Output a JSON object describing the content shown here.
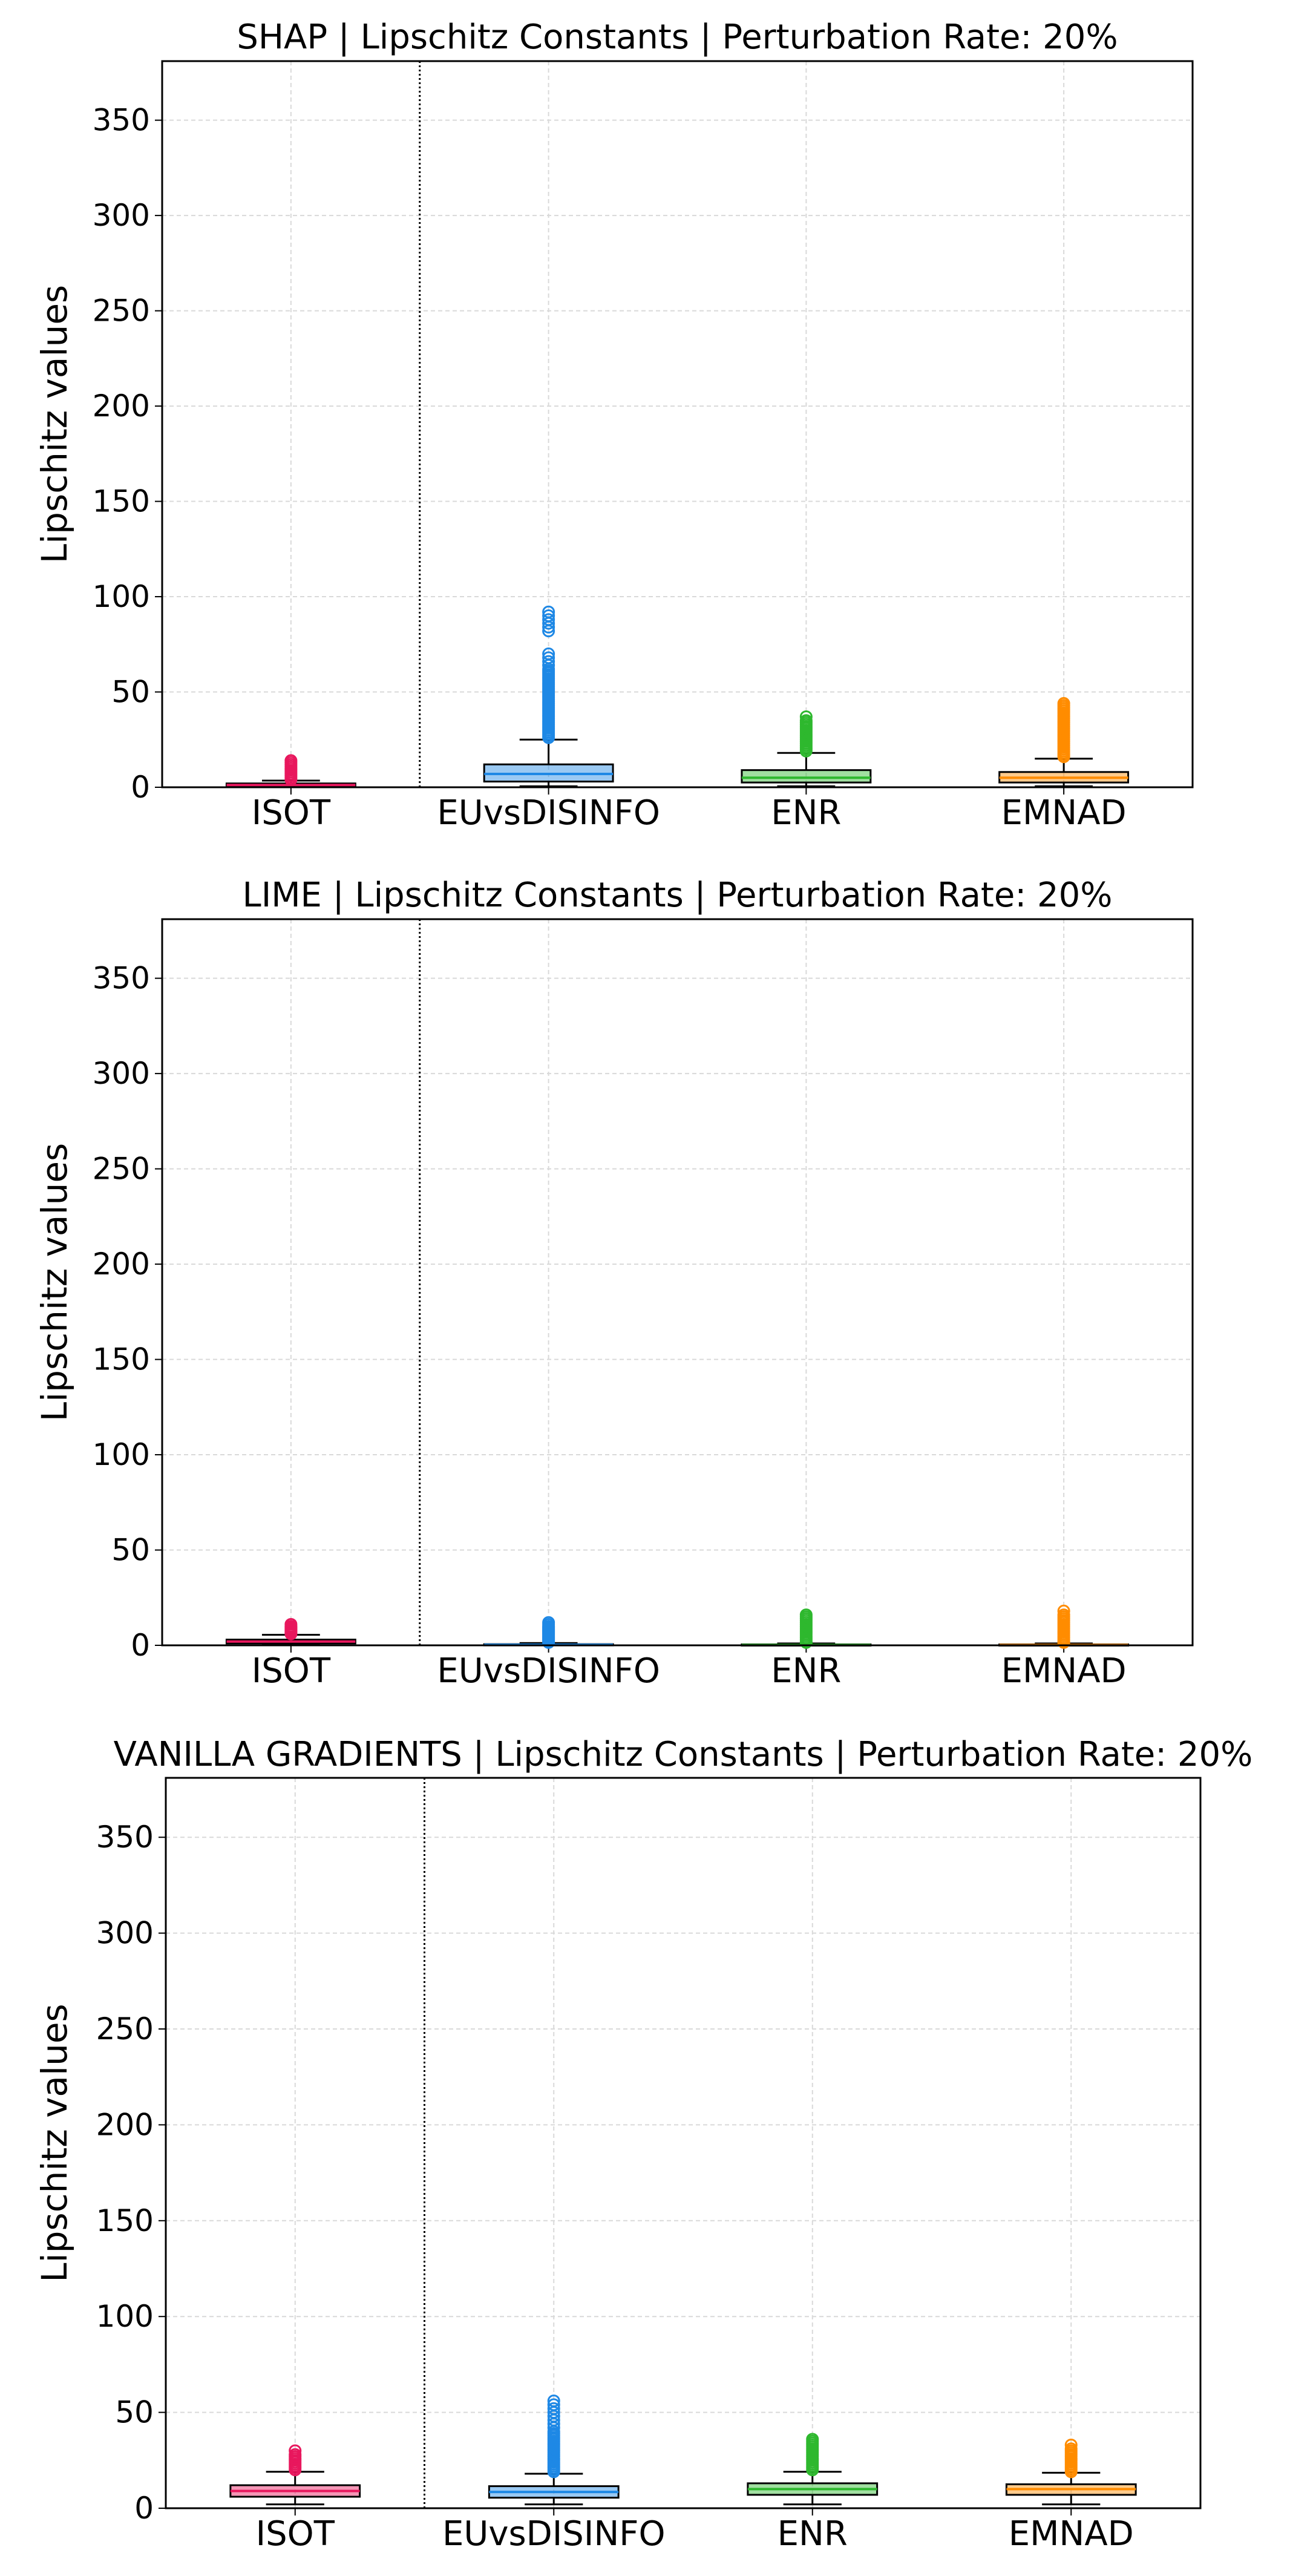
{
  "chart_data": [
    {
      "type": "box",
      "title": "SHAP | Lipschitz Constants | Perturbation Rate: 20%",
      "xlabel": "",
      "ylabel": "Lipschitz values",
      "ylim": [
        0,
        381
      ],
      "yticks": [
        0,
        50,
        100,
        150,
        200,
        250,
        300,
        350
      ],
      "grid": true,
      "separator_after_category": "ISOT",
      "categories": [
        "ISOT",
        "EUvsDISINFO",
        "ENR",
        "EMNAD"
      ],
      "series": [
        {
          "name": "ISOT",
          "color": "#e8175d",
          "whislo": 0.1,
          "q1": 0.6,
          "med": 1.2,
          "q3": 2.0,
          "whishi": 3.5,
          "fliers": [
            4,
            5,
            6,
            7,
            8,
            9,
            10,
            11,
            12,
            13,
            14
          ]
        },
        {
          "name": "EUvsDISINFO",
          "color": "#1e88e5",
          "whislo": 0.5,
          "q1": 3.0,
          "med": 7.0,
          "q3": 12.0,
          "whishi": 25.0,
          "fliers": [
            26,
            27,
            28,
            29,
            30,
            31,
            32,
            33,
            34,
            35,
            36,
            37,
            38,
            39,
            40,
            41,
            42,
            43,
            44,
            45,
            46,
            47,
            48,
            49,
            50,
            51,
            52,
            53,
            54,
            55,
            56,
            57,
            58,
            59,
            60,
            61,
            62,
            64,
            66,
            68,
            70,
            82,
            84,
            86,
            88,
            90,
            92
          ]
        },
        {
          "name": "ENR",
          "color": "#2eb82e",
          "whislo": 0.5,
          "q1": 2.5,
          "med": 5.0,
          "q3": 9.0,
          "whishi": 18.0,
          "fliers": [
            19,
            20,
            21,
            22,
            23,
            24,
            25,
            26,
            27,
            28,
            29,
            30,
            31,
            32,
            33,
            34,
            35,
            37
          ]
        },
        {
          "name": "EMNAD",
          "color": "#ff8c00",
          "whislo": 0.5,
          "q1": 2.5,
          "med": 5.0,
          "q3": 8.0,
          "whishi": 15.0,
          "fliers": [
            16,
            17,
            18,
            19,
            20,
            21,
            22,
            23,
            24,
            25,
            26,
            27,
            28,
            29,
            30,
            31,
            32,
            33,
            34,
            35,
            36,
            37,
            38,
            39,
            40,
            41,
            42,
            43,
            44
          ]
        }
      ]
    },
    {
      "type": "box",
      "title": "LIME | Lipschitz Constants | Perturbation Rate: 20%",
      "xlabel": "",
      "ylabel": "Lipschitz values",
      "ylim": [
        0,
        381
      ],
      "yticks": [
        0,
        50,
        100,
        150,
        200,
        250,
        300,
        350
      ],
      "grid": true,
      "separator_after_category": "ISOT",
      "categories": [
        "ISOT",
        "EUvsDISINFO",
        "ENR",
        "EMNAD"
      ],
      "series": [
        {
          "name": "ISOT",
          "color": "#e8175d",
          "whislo": 0.1,
          "q1": 1.0,
          "med": 2.0,
          "q3": 3.0,
          "whishi": 5.5,
          "fliers": [
            6,
            6.5,
            7,
            7.5,
            8,
            8.5,
            9,
            9.5,
            10,
            11
          ]
        },
        {
          "name": "EUvsDISINFO",
          "color": "#1e88e5",
          "whislo": 0.0,
          "q1": 0.1,
          "med": 0.3,
          "q3": 0.6,
          "whishi": 1.2,
          "fliers": [
            1.5,
            2,
            2.5,
            3,
            3.5,
            4,
            4.5,
            5,
            5.5,
            6,
            6.5,
            7,
            7.5,
            8,
            8.5,
            9,
            9.5,
            10,
            11,
            12
          ]
        },
        {
          "name": "ENR",
          "color": "#2eb82e",
          "whislo": 0.0,
          "q1": 0.1,
          "med": 0.2,
          "q3": 0.5,
          "whishi": 1.0,
          "fliers": [
            1.5,
            2,
            3,
            4,
            5,
            6,
            7,
            8,
            9,
            10,
            11,
            12,
            13,
            14,
            15,
            16
          ]
        },
        {
          "name": "EMNAD",
          "color": "#ff8c00",
          "whislo": 0.0,
          "q1": 0.1,
          "med": 0.2,
          "q3": 0.5,
          "whishi": 1.0,
          "fliers": [
            1.5,
            2,
            3,
            4,
            5,
            6,
            7,
            8,
            9,
            10,
            11,
            12,
            13,
            14,
            15,
            16,
            18
          ]
        }
      ]
    },
    {
      "type": "box",
      "title": "VANILLA GRADIENTS | Lipschitz Constants | Perturbation Rate: 20%",
      "xlabel": "",
      "ylabel": "Lipschitz values",
      "ylim": [
        0,
        381
      ],
      "yticks": [
        0,
        50,
        100,
        150,
        200,
        250,
        300,
        350
      ],
      "grid": true,
      "separator_after_category": "ISOT",
      "categories": [
        "ISOT",
        "EUvsDISINFO",
        "ENR",
        "EMNAD"
      ],
      "series": [
        {
          "name": "ISOT",
          "color": "#e8175d",
          "whislo": 2.0,
          "q1": 6.0,
          "med": 9.0,
          "q3": 12.0,
          "whishi": 19.0,
          "fliers": [
            20,
            21,
            22,
            23,
            24,
            25,
            26,
            27,
            28,
            30
          ]
        },
        {
          "name": "EUvsDISINFO",
          "color": "#1e88e5",
          "whislo": 2.0,
          "q1": 5.5,
          "med": 8.5,
          "q3": 11.5,
          "whishi": 18.0,
          "fliers": [
            19,
            20,
            21,
            22,
            23,
            24,
            25,
            26,
            27,
            28,
            29,
            30,
            31,
            32,
            33,
            34,
            35,
            36,
            37,
            38,
            39,
            40,
            42,
            44,
            46,
            48,
            50,
            52,
            54,
            56
          ]
        },
        {
          "name": "ENR",
          "color": "#2eb82e",
          "whislo": 2.0,
          "q1": 7.0,
          "med": 10.0,
          "q3": 13.0,
          "whishi": 19.0,
          "fliers": [
            20,
            21,
            22,
            23,
            24,
            25,
            26,
            27,
            28,
            29,
            30,
            31,
            32,
            33,
            34,
            35,
            36
          ]
        },
        {
          "name": "EMNAD",
          "color": "#ff8c00",
          "whislo": 2.0,
          "q1": 7.0,
          "med": 10.0,
          "q3": 12.5,
          "whishi": 18.5,
          "fliers": [
            19,
            20,
            21,
            22,
            23,
            24,
            25,
            26,
            27,
            28,
            29,
            30,
            31,
            33
          ]
        }
      ]
    }
  ]
}
